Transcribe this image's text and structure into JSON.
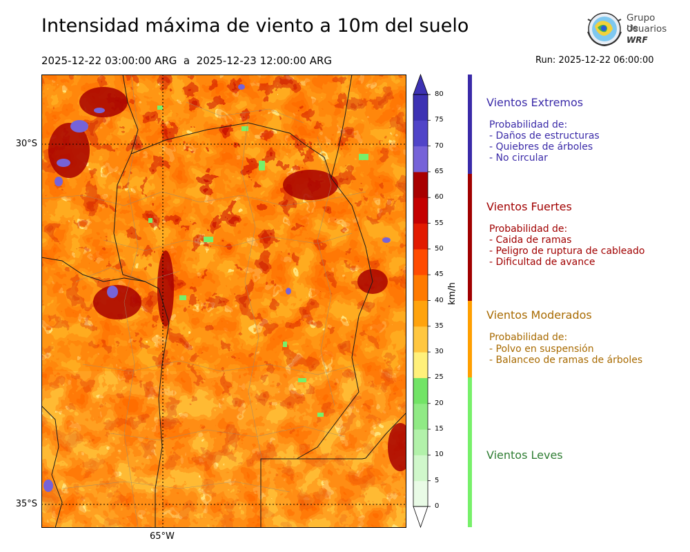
{
  "header": {
    "title": "Intensidad máxima de viento a 10m del suelo",
    "period": "2025-12-22 03:00:00 ARG  a  2025-12-23 12:00:00 ARG",
    "run": "Run: 2025-12-22 06:00:00"
  },
  "logo": {
    "line1": "Grupo de",
    "line2": "Usuarios",
    "line3": "WRF"
  },
  "map": {
    "lat_labels": [
      "30°S",
      "35°S"
    ],
    "lon_labels": [
      "65°W"
    ]
  },
  "colorbar": {
    "unit": "km/h",
    "ticks": [
      "0",
      "5",
      "10",
      "15",
      "20",
      "25",
      "30",
      "35",
      "40",
      "45",
      "50",
      "55",
      "60",
      "65",
      "70",
      "75",
      "80"
    ],
    "colors": [
      "#e9fbe6",
      "#d0f7cb",
      "#b2f1aa",
      "#90ea85",
      "#72e466",
      "#fff07a",
      "#ffc740",
      "#ffa30d",
      "#ff7a00",
      "#ff4b00",
      "#e21a00",
      "#c40000",
      "#a80000",
      "#7663d8",
      "#5044c8",
      "#3d32b3"
    ]
  },
  "categories": [
    {
      "title": "Vientos Extremos",
      "color": "#3a2aa8",
      "bar_color": "#3a2aa8",
      "lines": [
        "Probabilidad de:",
        "- Daños de estructuras",
        "- Quiebres de árboles",
        "- No circular"
      ]
    },
    {
      "title": "Vientos Fuertes",
      "color": "#a10000",
      "bar_color": "#a10000",
      "lines": [
        "Probabilidad de:",
        "- Caida de ramas",
        "- Peligro de ruptura de cableado",
        "- Dificultad de avance"
      ]
    },
    {
      "title": "Vientos Moderados",
      "color": "#a86a00",
      "bar_color": "#ff9f00",
      "lines": [
        "Probabilidad de:",
        "- Polvo en suspensión",
        "- Balanceo de ramas de árboles"
      ]
    },
    {
      "title": "Vientos Leves",
      "color": "#2e7d32",
      "bar_color": "#77f06a",
      "lines": []
    }
  ]
}
